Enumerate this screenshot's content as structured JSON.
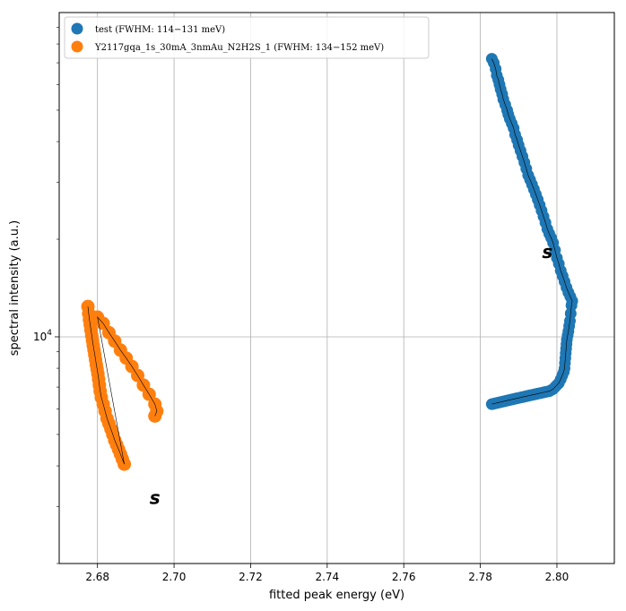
{
  "chart_data": {
    "type": "scatter",
    "xlabel": "fitted peak energy (eV)",
    "ylabel": "spectral intensity (a.u.)",
    "xlim": [
      2.67,
      2.815
    ],
    "ylim": [
      2000,
      100000
    ],
    "yscale": "log",
    "grid": true,
    "legend_position": "top-left",
    "x_ticks": [
      "2.68",
      "2.70",
      "2.72",
      "2.74",
      "2.76",
      "2.78",
      "2.80"
    ],
    "y_tick_base": "10",
    "y_tick_exp": "4",
    "colors": {
      "test": "#1f77b4",
      "sample": "#ff7f0e",
      "trace": "#000000"
    },
    "series": [
      {
        "name": "test (FWHM: 114−131 meV)",
        "color": "#1f77b4",
        "points": [
          [
            2.783,
            72000
          ],
          [
            2.7835,
            70000
          ],
          [
            2.784,
            67000
          ],
          [
            2.7843,
            64000
          ],
          [
            2.7847,
            62000
          ],
          [
            2.785,
            60000
          ],
          [
            2.7853,
            58000
          ],
          [
            2.7857,
            56000
          ],
          [
            2.786,
            54000
          ],
          [
            2.7865,
            52000
          ],
          [
            2.787,
            50000
          ],
          [
            2.7873,
            48500
          ],
          [
            2.7877,
            47000
          ],
          [
            2.7882,
            45500
          ],
          [
            2.7887,
            44000
          ],
          [
            2.7891,
            42000
          ],
          [
            2.7896,
            40500
          ],
          [
            2.79,
            39000
          ],
          [
            2.7905,
            37500
          ],
          [
            2.791,
            36000
          ],
          [
            2.7915,
            34500
          ],
          [
            2.792,
            33000
          ],
          [
            2.7925,
            31500
          ],
          [
            2.793,
            30500
          ],
          [
            2.7935,
            29500
          ],
          [
            2.794,
            28500
          ],
          [
            2.7945,
            27500
          ],
          [
            2.795,
            26500
          ],
          [
            2.7955,
            25500
          ],
          [
            2.796,
            24500
          ],
          [
            2.7965,
            23500
          ],
          [
            2.797,
            22500
          ],
          [
            2.7975,
            21500
          ],
          [
            2.798,
            20800
          ],
          [
            2.7985,
            20200
          ],
          [
            2.799,
            19500
          ],
          [
            2.7995,
            18500
          ],
          [
            2.8,
            17500
          ],
          [
            2.8005,
            16800
          ],
          [
            2.801,
            16000
          ],
          [
            2.8015,
            15400
          ],
          [
            2.802,
            14800
          ],
          [
            2.8025,
            14200
          ],
          [
            2.803,
            13700
          ],
          [
            2.8035,
            13300
          ],
          [
            2.804,
            12900
          ],
          [
            2.8038,
            12500
          ],
          [
            2.8036,
            11800
          ],
          [
            2.8034,
            11200
          ],
          [
            2.8032,
            10800
          ],
          [
            2.803,
            10400
          ],
          [
            2.8028,
            10100
          ],
          [
            2.8026,
            9800
          ],
          [
            2.8025,
            9500
          ],
          [
            2.8024,
            9200
          ],
          [
            2.8023,
            8900
          ],
          [
            2.8022,
            8600
          ],
          [
            2.8021,
            8300
          ],
          [
            2.802,
            8000
          ],
          [
            2.8018,
            7800
          ],
          [
            2.8014,
            7600
          ],
          [
            2.801,
            7400
          ],
          [
            2.8005,
            7200
          ],
          [
            2.8,
            7100
          ],
          [
            2.7995,
            7000
          ],
          [
            2.799,
            6900
          ],
          [
            2.7985,
            6850
          ],
          [
            2.798,
            6800
          ],
          [
            2.7975,
            6780
          ],
          [
            2.797,
            6760
          ],
          [
            2.7965,
            6740
          ],
          [
            2.796,
            6720
          ],
          [
            2.7955,
            6700
          ],
          [
            2.795,
            6680
          ],
          [
            2.7945,
            6660
          ],
          [
            2.794,
            6640
          ],
          [
            2.7935,
            6620
          ],
          [
            2.793,
            6600
          ],
          [
            2.7925,
            6580
          ],
          [
            2.792,
            6560
          ],
          [
            2.7915,
            6540
          ],
          [
            2.791,
            6520
          ],
          [
            2.7905,
            6500
          ],
          [
            2.79,
            6480
          ],
          [
            2.7895,
            6460
          ],
          [
            2.789,
            6440
          ],
          [
            2.7885,
            6420
          ],
          [
            2.788,
            6400
          ],
          [
            2.7875,
            6380
          ],
          [
            2.787,
            6360
          ],
          [
            2.7865,
            6340
          ],
          [
            2.786,
            6320
          ],
          [
            2.7855,
            6300
          ],
          [
            2.785,
            6280
          ],
          [
            2.7845,
            6260
          ],
          [
            2.784,
            6240
          ],
          [
            2.7835,
            6220
          ],
          [
            2.783,
            6200
          ]
        ]
      },
      {
        "name": "Y2117gqa_1s_30mA_3nmAu_N2H2S_1 (FWHM: 134−152 meV)",
        "color": "#ff7f0e",
        "points": [
          [
            2.6775,
            12400
          ],
          [
            2.6777,
            11800
          ],
          [
            2.6779,
            11300
          ],
          [
            2.6781,
            10900
          ],
          [
            2.6783,
            10500
          ],
          [
            2.6785,
            10100
          ],
          [
            2.6787,
            9750
          ],
          [
            2.6789,
            9400
          ],
          [
            2.6791,
            9100
          ],
          [
            2.6793,
            8800
          ],
          [
            2.6795,
            8500
          ],
          [
            2.6797,
            8200
          ],
          [
            2.6799,
            7950
          ],
          [
            2.6801,
            7700
          ],
          [
            2.6803,
            7400
          ],
          [
            2.6805,
            7100
          ],
          [
            2.6807,
            6800
          ],
          [
            2.681,
            6500
          ],
          [
            2.6815,
            6200
          ],
          [
            2.682,
            5900
          ],
          [
            2.6825,
            5600
          ],
          [
            2.683,
            5400
          ],
          [
            2.6835,
            5200
          ],
          [
            2.684,
            5000
          ],
          [
            2.6845,
            4800
          ],
          [
            2.685,
            4650
          ],
          [
            2.6855,
            4500
          ],
          [
            2.686,
            4350
          ],
          [
            2.6865,
            4200
          ],
          [
            2.687,
            4050
          ],
          [
            2.68,
            11500
          ],
          [
            2.6815,
            11000
          ],
          [
            2.683,
            10300
          ],
          [
            2.6845,
            9700
          ],
          [
            2.686,
            9100
          ],
          [
            2.6875,
            8600
          ],
          [
            2.689,
            8100
          ],
          [
            2.6905,
            7600
          ],
          [
            2.692,
            7100
          ],
          [
            2.6935,
            6650
          ],
          [
            2.695,
            6200
          ],
          [
            2.6955,
            5900
          ],
          [
            2.695,
            5700
          ]
        ]
      }
    ],
    "annotations": [
      {
        "text": "s",
        "x": 2.7975,
        "y": 17500
      },
      {
        "text": "s",
        "x": 2.695,
        "y": 3050
      }
    ]
  }
}
